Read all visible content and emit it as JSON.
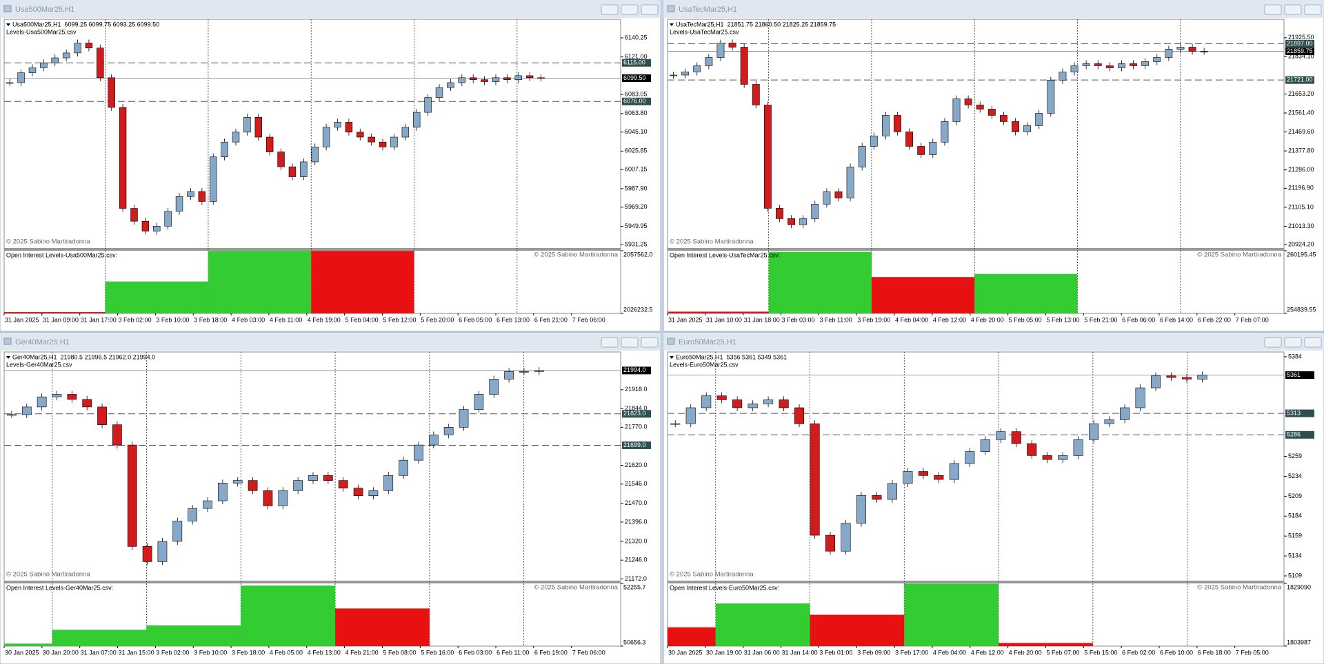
{
  "windows": [
    {
      "title": "Usa500Mar25,H1",
      "header": "Usa500Mar25,H1  6099.25 6099.75 6093.25 6099.50",
      "levels_file": "Levels-Usa500Mar25.csv",
      "copyright": "© 2025 Sabino Martiradonna",
      "oi_label": "Open Interest Levels-Usa500Mar25.csv:",
      "oi_copyright": "© 2025 Sabino Martiradonna",
      "ylim": [
        5928,
        6159
      ],
      "price_ticks": [
        6140.25,
        {
          "value": 6121,
          "label": "6121.00"
        },
        {
          "value": 6083.05,
          "label": "6083.05"
        },
        {
          "value": 6063.8,
          "label": "6063.80"
        },
        {
          "value": 6045.1,
          "label": "6045.10"
        },
        6025.85,
        6007.15,
        {
          "value": 5987.9,
          "label": "5987.90"
        },
        {
          "value": 5969.2,
          "label": "5969.20"
        },
        5949.95,
        5931.25
      ],
      "level_ticks": [
        {
          "value": 6115,
          "label": "6115.00"
        },
        {
          "value": 6076,
          "label": "6076.00"
        }
      ],
      "last_price": {
        "value": 6099.5,
        "label": "6099.50"
      },
      "closes": [
        6095,
        6105,
        6110,
        6115,
        6120,
        6125,
        6135,
        6130,
        6100,
        6070,
        5968,
        5955,
        5945,
        5950,
        5965,
        5980,
        5985,
        5975,
        6020,
        6035,
        6045,
        6060,
        6040,
        6025,
        6010,
        6000,
        6015,
        6030,
        6050,
        6055,
        6045,
        6040,
        6035,
        6030,
        6040,
        6050,
        6065,
        6080,
        6090,
        6095,
        6100,
        6098,
        6096,
        6100,
        6098,
        6102,
        6100,
        6099.5
      ],
      "time_labels": [
        "31 Jan 2025",
        "31 Jan 09:00",
        "31 Jan 17:00",
        "3 Feb 02:00",
        "3 Feb 10:00",
        "3 Feb 18:00",
        "4 Feb 03:00",
        "4 Feb 11:00",
        "4 Feb 19:00",
        "5 Feb 04:00",
        "5 Feb 12:00",
        "5 Feb 20:00",
        "6 Feb 05:00",
        "6 Feb 13:00",
        "6 Feb 21:00",
        "7 Feb 06:00"
      ],
      "oi": {
        "ylim": [
          2026232.5,
          2057562
        ],
        "ticks": [
          {
            "value": 2057562,
            "label": "2057562.0"
          },
          2026232.5
        ],
        "values": [
          2026900,
          2042200,
          2057500,
          2057500
        ],
        "colors": [
          "#e81010",
          "#33cc33",
          "#33cc33",
          "#e81010"
        ]
      }
    },
    {
      "title": "UsaTecMar25,H1",
      "header": "UsaTecMar25,H1  21851.75 21860.50 21825.25 21859.75",
      "levels_file": "Levels-UsaTecMar25.csv",
      "copyright": "© 2025 Sabino Martiradonna",
      "oi_label": "Open Interest Levels-UsaTecMar25.csv:",
      "oi_copyright": "© 2025 Sabino Martiradonna",
      "ylim": [
        20908,
        22015
      ],
      "price_ticks": [
        {
          "value": 21925.5,
          "label": "21925.50"
        },
        {
          "value": 21834.1,
          "label": "21834.10"
        },
        {
          "value": 21653.2,
          "label": "21653.20"
        },
        {
          "value": 21561.4,
          "label": "21561.40"
        },
        {
          "value": 21469.6,
          "label": "21469.60"
        },
        {
          "value": 21377.8,
          "label": "21377.80"
        },
        {
          "value": 21286,
          "label": "21286.00"
        },
        {
          "value": 21196.9,
          "label": "21196.90"
        },
        {
          "value": 21105.1,
          "label": "21105.10"
        },
        {
          "value": 21013.3,
          "label": "21013.30"
        },
        {
          "value": 20924.2,
          "label": "20924.20"
        }
      ],
      "level_ticks": [
        {
          "value": 21897,
          "label": "21897.00"
        },
        {
          "value": 21721,
          "label": "21721.00"
        }
      ],
      "last_price": 21859.75,
      "closes": [
        21745,
        21760,
        21790,
        21830,
        21900,
        21880,
        21700,
        21600,
        21100,
        21050,
        21020,
        21050,
        21120,
        21180,
        21150,
        21300,
        21400,
        21450,
        21550,
        21470,
        21400,
        21360,
        21420,
        21520,
        21630,
        21600,
        21580,
        21550,
        21520,
        21470,
        21500,
        21560,
        21720,
        21760,
        21790,
        21800,
        21790,
        21780,
        21800,
        21790,
        21810,
        21830,
        21870,
        21880,
        21860,
        21859.75
      ],
      "time_labels": [
        "31 Jan 2025",
        "31 Jan 10:00",
        "31 Jan 18:00",
        "3 Feb 03:00",
        "3 Feb 11:00",
        "3 Feb 19:00",
        "4 Feb 04:00",
        "4 Feb 12:00",
        "4 Feb 20:00",
        "5 Feb 05:00",
        "5 Feb 13:00",
        "5 Feb 21:00",
        "6 Feb 06:00",
        "6 Feb 14:00",
        "6 Feb 22:00",
        "7 Feb 07:00"
      ],
      "oi": {
        "ylim": [
          254839.55,
          260195.45
        ],
        "ticks": [
          260195.45,
          254839.55
        ],
        "values": [
          254990,
          260100,
          257946,
          258214
        ],
        "colors": [
          "#e81010",
          "#33cc33",
          "#e81010",
          "#33cc33"
        ]
      }
    },
    {
      "title": "Ger40Mar25,H1",
      "header": "Ger40Mar25,H1  21980.5 21996.5 21962.0 21994.0",
      "levels_file": "Levels-Ger40Mar25.csv",
      "copyright": "© 2025 Sabino Martiradonna",
      "oi_label": "Open Interest Levels-Ger40Mar25.csv:",
      "oi_copyright": "© 2025 Sabino Martiradonna",
      "ylim": [
        21165,
        22067
      ],
      "price_ticks": [
        {
          "value": 21918,
          "label": "21918.0"
        },
        {
          "value": 21844,
          "label": "21844.0"
        },
        {
          "value": 21770,
          "label": "21770.0"
        },
        {
          "value": 21620,
          "label": "21620.0"
        },
        {
          "value": 21546,
          "label": "21546.0"
        },
        {
          "value": 21470,
          "label": "21470.0"
        },
        {
          "value": 21396,
          "label": "21396.0"
        },
        {
          "value": 21320,
          "label": "21320.0"
        },
        {
          "value": 21246,
          "label": "21246.0"
        },
        {
          "value": 21172,
          "label": "21172.0"
        }
      ],
      "level_ticks": [
        {
          "value": 21823,
          "label": "21823.0"
        },
        {
          "value": 21699,
          "label": "21699.0"
        }
      ],
      "last_price": {
        "value": 21994,
        "label": "21994.0"
      },
      "closes": [
        21820,
        21850,
        21890,
        21900,
        21880,
        21850,
        21780,
        21700,
        21300,
        21240,
        21320,
        21400,
        21450,
        21480,
        21550,
        21560,
        21520,
        21460,
        21520,
        21560,
        21580,
        21560,
        21530,
        21500,
        21520,
        21580,
        21640,
        21700,
        21740,
        21770,
        21840,
        21900,
        21960,
        21990,
        21990,
        21994
      ],
      "time_labels": [
        "30 Jan 2025",
        "30 Jan 20:00",
        "31 Jan 07:00",
        "31 Jan 15:00",
        "3 Feb 02:00",
        "3 Feb 10:00",
        "3 Feb 18:00",
        "4 Feb 05:00",
        "4 Feb 13:00",
        "4 Feb 21:00",
        "5 Feb 08:00",
        "5 Feb 16:00",
        "6 Feb 03:00",
        "6 Feb 11:00",
        "6 Feb 19:00",
        "7 Feb 06:00"
      ],
      "oi": {
        "ylim": [
          50656.3,
          52255.7
        ],
        "ticks": [
          52255.7,
          50656.3
        ],
        "values": [
          50720,
          51072,
          51184,
          52200,
          51616
        ],
        "colors": [
          "#33cc33",
          "#33cc33",
          "#33cc33",
          "#33cc33",
          "#e81010"
        ]
      }
    },
    {
      "title": "Euro50Mar25,H1",
      "header": "Euro50Mar25,H1  5356 5361 5349 5361",
      "levels_file": "Levels-Euro50Mar25.csv",
      "copyright": "© 2025 Sabino Martiradonna",
      "oi_label": "Open Interest Levels-Euro50Mar25.csv:",
      "oi_copyright": "© 2025 Sabino Martiradonna",
      "ylim": [
        5103,
        5390
      ],
      "price_ticks": [
        5384,
        5259,
        5234,
        5209,
        5184,
        5159,
        5134,
        5109
      ],
      "level_ticks": [
        5313,
        5286
      ],
      "last_price": 5361,
      "closes": [
        5300,
        5320,
        5335,
        5330,
        5320,
        5325,
        5330,
        5320,
        5300,
        5160,
        5140,
        5175,
        5210,
        5205,
        5225,
        5240,
        5235,
        5230,
        5250,
        5265,
        5280,
        5290,
        5275,
        5260,
        5255,
        5260,
        5280,
        5300,
        5305,
        5320,
        5345,
        5360,
        5358,
        5356,
        5361
      ],
      "time_labels": [
        "30 Jan 2025",
        "30 Jan 19:00",
        "31 Jan 06:00",
        "31 Jan 14:00",
        "3 Feb 01:00",
        "3 Feb 09:00",
        "3 Feb 17:00",
        "4 Feb 04:00",
        "4 Feb 12:00",
        "4 Feb 20:00",
        "5 Feb 07:00",
        "5 Feb 15:00",
        "6 Feb 02:00",
        "6 Feb 10:00",
        "6 Feb 18:00",
        "7 Feb 05:00"
      ],
      "oi": {
        "ylim": [
          1803987,
          1829090
        ],
        "ticks": [
          1829090,
          1803987
        ],
        "values": [
          1811518,
          1821057,
          1816538,
          1829000,
          1805242
        ],
        "colors": [
          "#e81010",
          "#33cc33",
          "#e81010",
          "#33cc33",
          "#e81010"
        ]
      }
    }
  ]
}
